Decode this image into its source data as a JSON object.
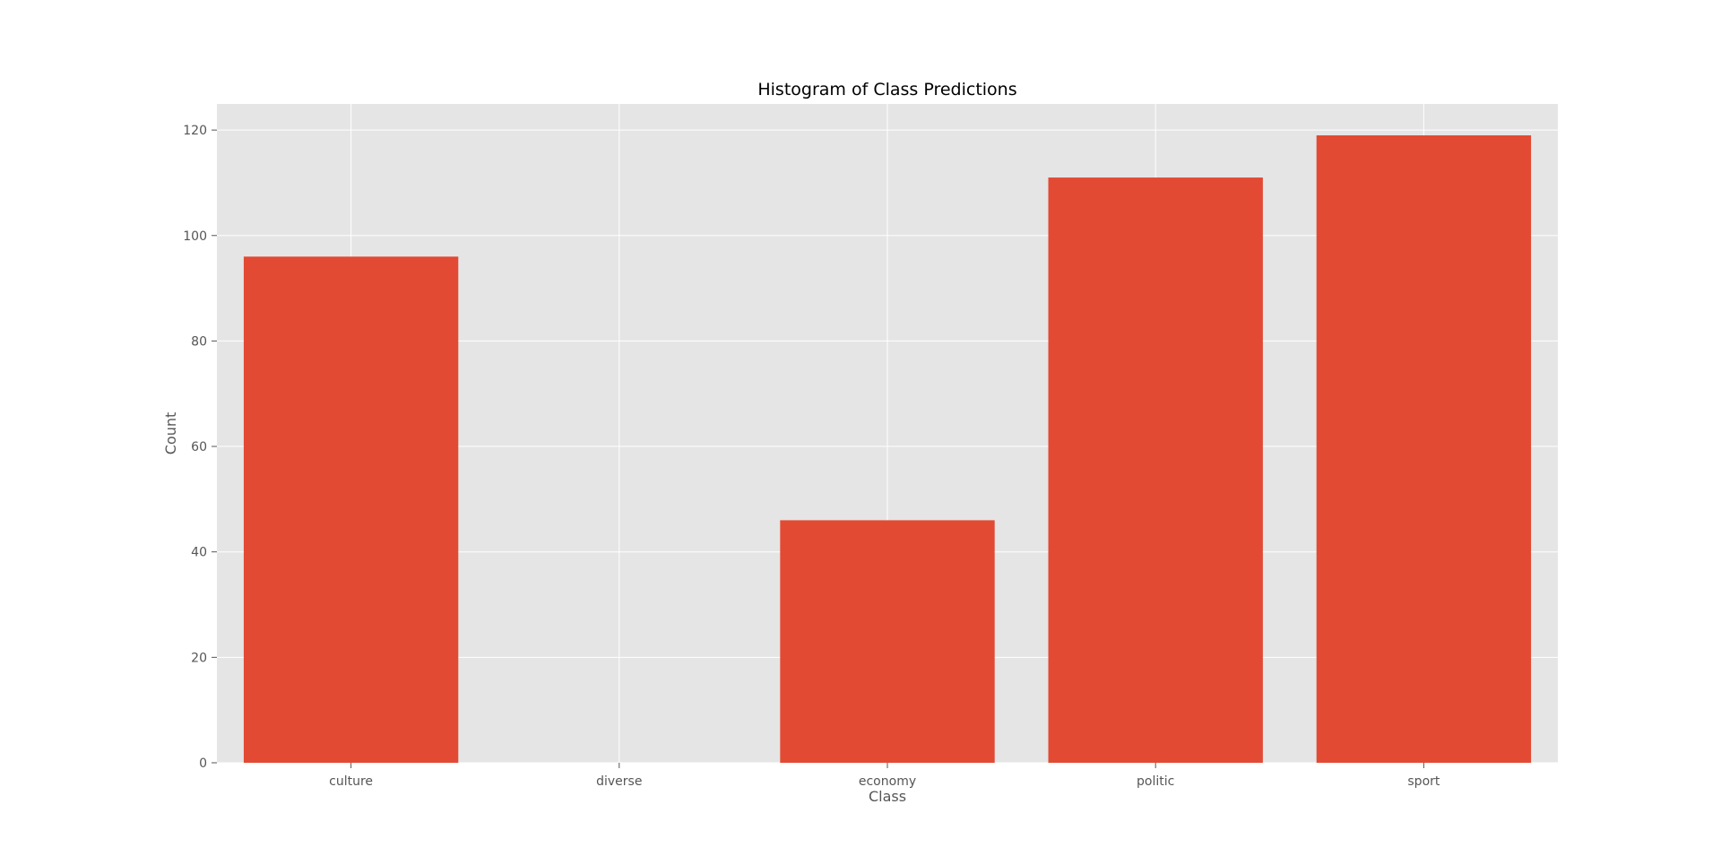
{
  "chart_data": {
    "type": "bar",
    "title": "Histogram of Class Predictions",
    "xlabel": "Class",
    "ylabel": "Count",
    "categories": [
      "culture",
      "diverse",
      "economy",
      "politic",
      "sport"
    ],
    "values": [
      96,
      0,
      46,
      111,
      119
    ],
    "ylim": [
      0,
      124.95
    ],
    "yticks": [
      0,
      20,
      40,
      60,
      80,
      100,
      120
    ],
    "grid": true,
    "legend": "none",
    "colors": {
      "bar": "#E24A33",
      "plot_background": "#E5E5E5",
      "grid": "#FFFFFF",
      "text": "#555555",
      "title": "#000000"
    }
  }
}
